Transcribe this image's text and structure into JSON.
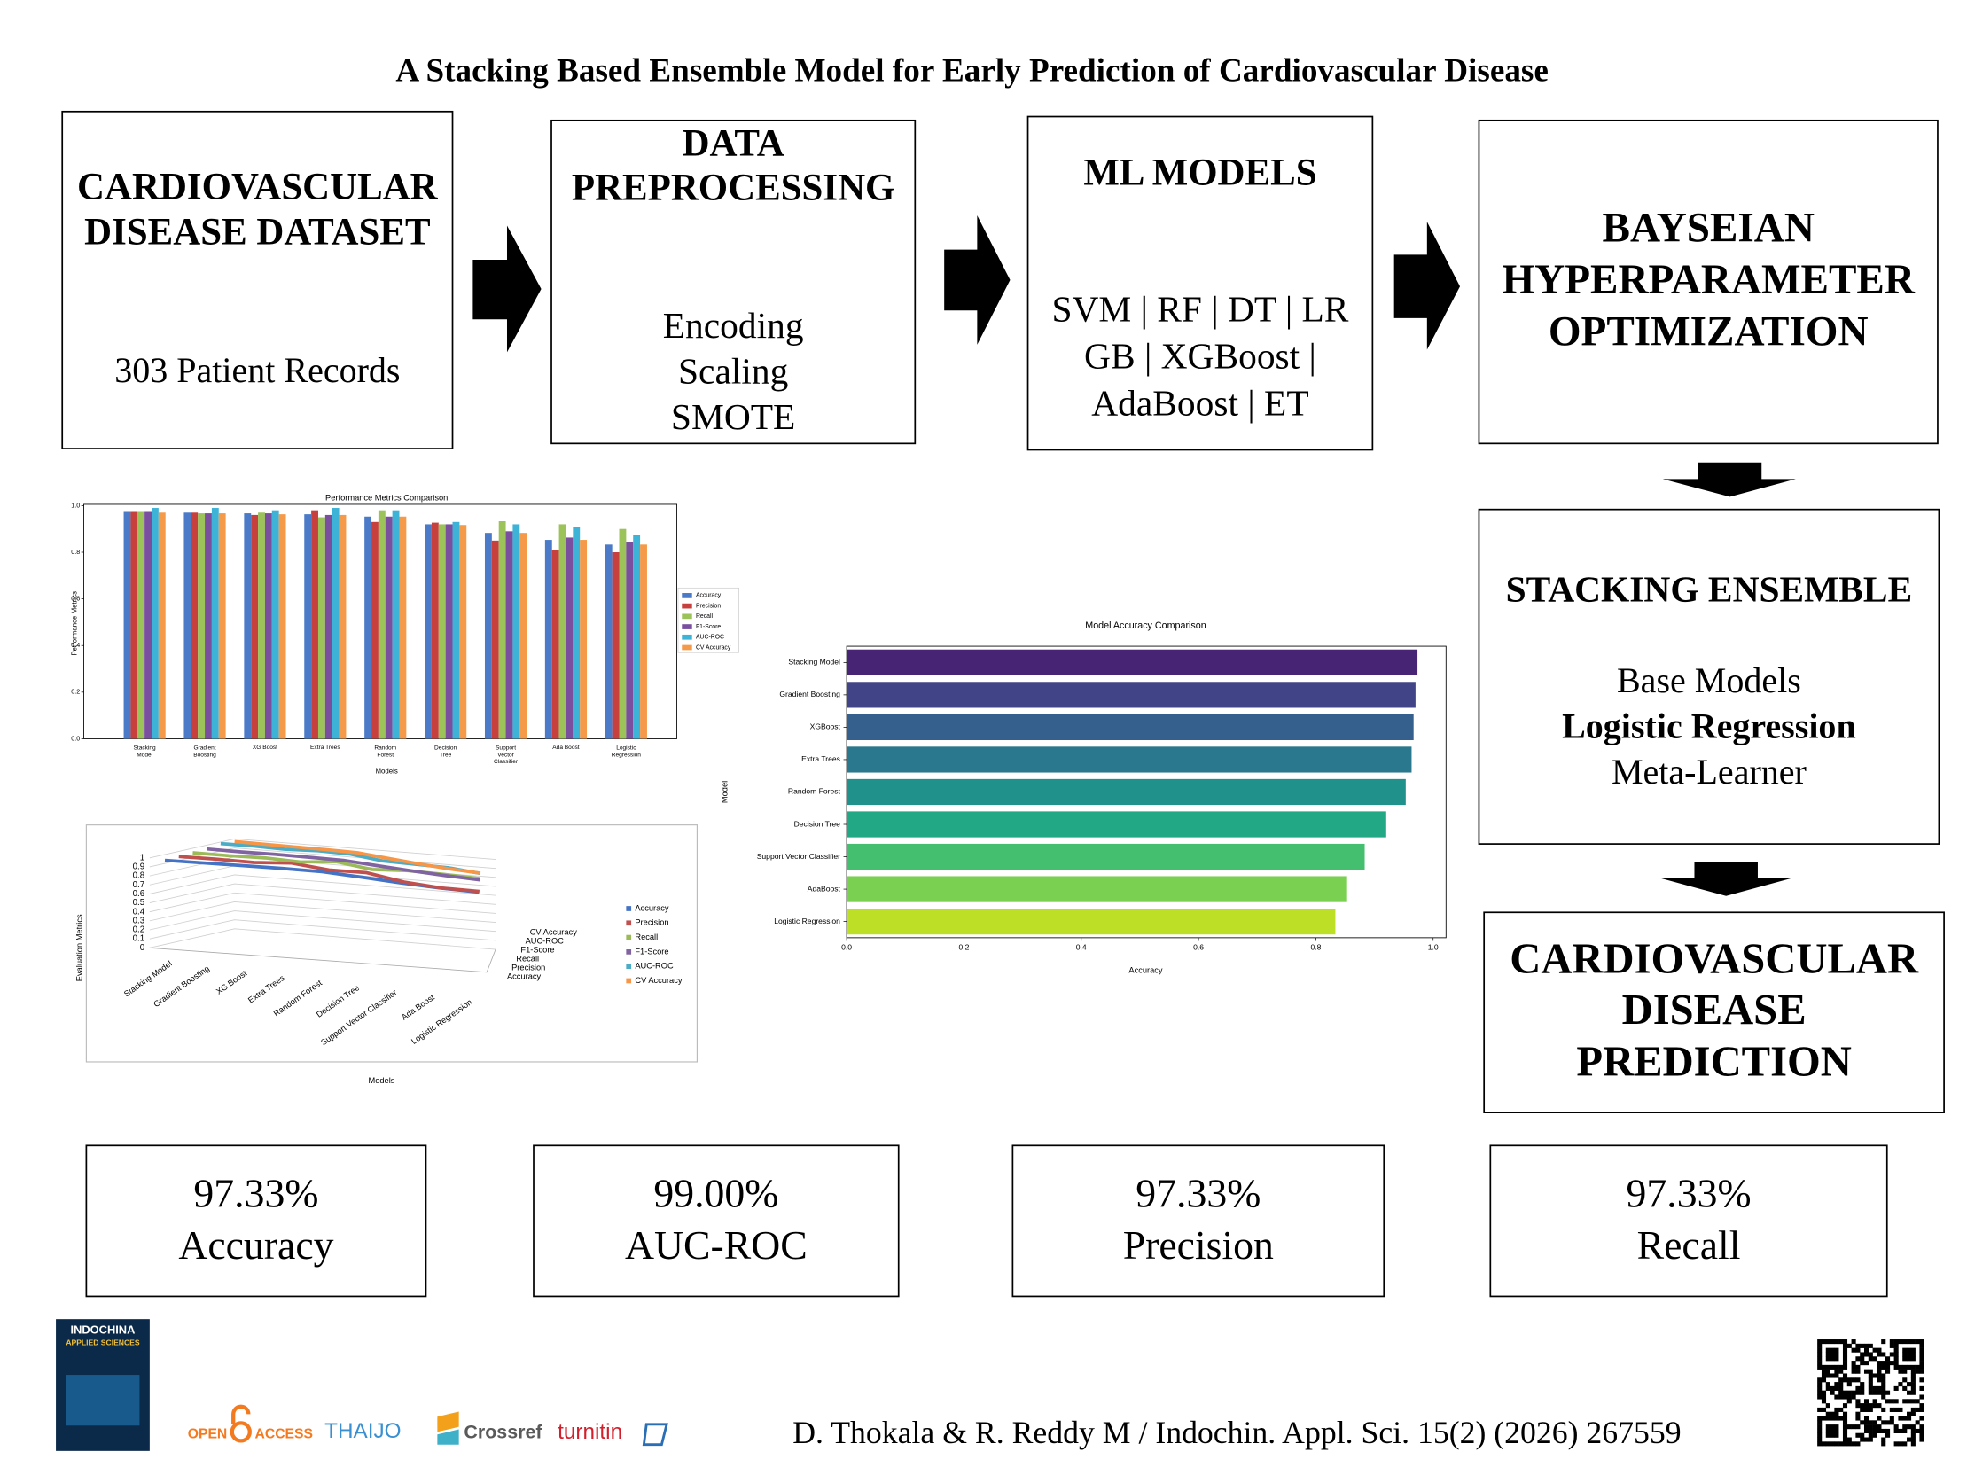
{
  "title": "A Stacking Based Ensemble Model for Early Prediction of Cardiovascular Disease",
  "boxes": [
    {
      "heading": [
        "CARDIOVASCULAR",
        "DISEASE DATASET"
      ],
      "body": [
        "303  Patient Records"
      ]
    },
    {
      "heading": [
        "DATA",
        "PREPROCESSING"
      ],
      "body": [
        "Encoding",
        "Scaling",
        "SMOTE"
      ]
    },
    {
      "heading": [
        "ML MODELS"
      ],
      "body": [
        "SVM | RF | DT | LR",
        "GB | XGBoost |",
        "AdaBoost | ET"
      ]
    },
    {
      "heading": [
        "BAYSEIAN",
        "HYPERPARAMETER",
        "OPTIMIZATION"
      ],
      "body": []
    },
    {
      "heading": [
        "STACKING ENSEMBLE"
      ],
      "body": [
        "Base Models",
        "Logistic Regression",
        "Meta-Learner"
      ]
    },
    {
      "heading": [
        "CARDIOVASCULAR",
        "DISEASE",
        "PREDICTION"
      ],
      "body": []
    }
  ],
  "metrics": [
    {
      "value": "97.33%",
      "label": "Accuracy"
    },
    {
      "value": "99.00%",
      "label": "AUC-ROC"
    },
    {
      "value": "97.33%",
      "label": "Precision"
    },
    {
      "value": "97.33%",
      "label": "Recall"
    }
  ],
  "footer": {
    "citation": "D. Thokala & R. Reddy M / Indochin. Appl. Sci. 15(2) (2026) 267559",
    "cover": [
      "INDOCHINA",
      "APPLIED SCIENCES"
    ],
    "logos": {
      "open": "OPEN",
      "access": "ACCESS",
      "thaijo": "THAIJO",
      "crossref": "Crossref",
      "turnitin": "turnitin"
    }
  },
  "chart_data": [
    {
      "type": "bar",
      "title": "Performance Metrics Comparison",
      "x_label": "Models",
      "y_label": "Performance Metrics",
      "categories": [
        "Stacking Model",
        "Gradient Boosting",
        "XG Boost",
        "Extra Trees",
        "Random Forest",
        "Decision Tree",
        "Support Vector Classifier",
        "Ada Boost",
        "Logistic Regression"
      ],
      "series": [
        {
          "name": "Accuracy",
          "color": "#4a7ac8",
          "values": [
            0.973,
            0.97,
            0.967,
            0.963,
            0.953,
            0.92,
            0.883,
            0.853,
            0.833
          ]
        },
        {
          "name": "Precision",
          "color": "#c8403e",
          "values": [
            0.973,
            0.97,
            0.96,
            0.98,
            0.93,
            0.927,
            0.85,
            0.81,
            0.8
          ]
        },
        {
          "name": "Recall",
          "color": "#9cc25a",
          "values": [
            0.973,
            0.967,
            0.97,
            0.95,
            0.98,
            0.92,
            0.933,
            0.92,
            0.9
          ]
        },
        {
          "name": "F1-Score",
          "color": "#7a4fa0",
          "values": [
            0.973,
            0.967,
            0.967,
            0.96,
            0.953,
            0.92,
            0.89,
            0.863,
            0.843
          ]
        },
        {
          "name": "AUC-ROC",
          "color": "#3eb3d8",
          "values": [
            0.99,
            0.99,
            0.98,
            0.99,
            0.98,
            0.93,
            0.92,
            0.91,
            0.873
          ]
        },
        {
          "name": "CV Accuracy",
          "color": "#f59a48",
          "values": [
            0.97,
            0.967,
            0.963,
            0.96,
            0.953,
            0.917,
            0.883,
            0.853,
            0.833
          ]
        }
      ],
      "ylim": [
        0,
        1
      ],
      "yticks": [
        {
          "value": 0,
          "label": "0.0"
        },
        0.2,
        0.4,
        0.6,
        0.8,
        {
          "value": 1,
          "label": "1.0"
        }
      ],
      "legend": "right"
    },
    {
      "type": "barh",
      "title": "Model Accuracy Comparison",
      "x_label": "Accuracy",
      "y_label": "Model",
      "categories": [
        "Stacking Model",
        "Gradient Boosting",
        "XGBoost",
        "Extra Trees",
        "Random Forest",
        "Decision Tree",
        "Support Vector Classifier",
        "AdaBoost",
        "Logistic Regression"
      ],
      "values": [
        0.9733,
        0.97,
        0.9667,
        0.9633,
        0.9533,
        0.92,
        0.8833,
        0.8533,
        0.8333
      ],
      "colors": [
        "#482475",
        "#414487",
        "#355f8d",
        "#2a788e",
        "#21918c",
        "#22a884",
        "#44bf70",
        "#7ad151",
        "#bddf26"
      ],
      "xlim": [
        0,
        1.022
      ],
      "xticks": [
        {
          "value": 0,
          "label": "0.0"
        },
        0.2,
        0.4,
        0.6,
        0.8,
        {
          "value": 1,
          "label": "1.0"
        }
      ]
    },
    {
      "type": "line",
      "x_label": "Models",
      "y_label": "Evaluation Metrics",
      "categories": [
        "Stacking Model",
        "Gradient Boosting",
        "XG Boost",
        "Extra Trees",
        "Random Forest",
        "Decision Tree",
        "Support Vector Classifier",
        "Ada Boost",
        "Logistic Regression"
      ],
      "series": [
        {
          "name": "Accuracy",
          "color": "#4472c4",
          "values": [
            0.973,
            0.97,
            0.967,
            0.963,
            0.953,
            0.92,
            0.883,
            0.853,
            0.833
          ]
        },
        {
          "name": "Precision",
          "color": "#c0504d",
          "values": [
            0.973,
            0.97,
            0.96,
            0.98,
            0.93,
            0.927,
            0.85,
            0.81,
            0.8
          ]
        },
        {
          "name": "Recall",
          "color": "#9bbb59",
          "values": [
            0.973,
            0.967,
            0.97,
            0.95,
            0.98,
            0.92,
            0.933,
            0.92,
            0.9
          ]
        },
        {
          "name": "F1-Score",
          "color": "#8064a2",
          "values": [
            0.973,
            0.967,
            0.967,
            0.96,
            0.953,
            0.92,
            0.89,
            0.863,
            0.843
          ]
        },
        {
          "name": "AUC-ROC",
          "color": "#4bacc6",
          "values": [
            0.99,
            0.99,
            0.98,
            0.99,
            0.98,
            0.93,
            0.92,
            0.91,
            0.873
          ]
        },
        {
          "name": "CV Accuracy",
          "color": "#f79646",
          "values": [
            0.97,
            0.967,
            0.963,
            0.96,
            0.953,
            0.917,
            0.883,
            0.853,
            0.833
          ]
        }
      ],
      "ylim": [
        0,
        1
      ],
      "yticks": [
        0,
        0.1,
        0.2,
        0.3,
        0.4,
        0.5,
        0.6,
        0.7,
        0.8,
        0.9,
        1
      ],
      "legend": "right",
      "view": "3d"
    }
  ]
}
